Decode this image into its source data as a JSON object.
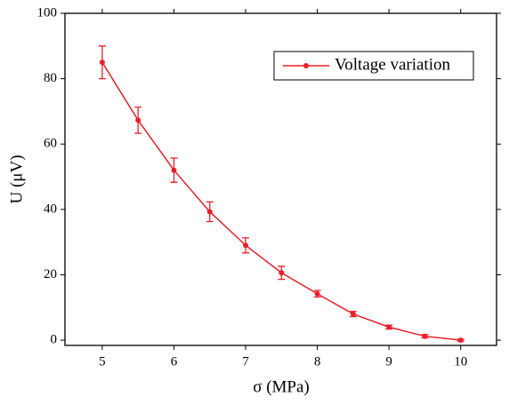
{
  "chart_data": {
    "type": "line",
    "x_label": "σ (MPa)",
    "y_label": "U (μV)",
    "x": [
      5,
      5.5,
      6,
      6.5,
      7,
      7.5,
      8,
      8.5,
      9,
      9.5,
      10
    ],
    "series": [
      {
        "name": "Voltage variation",
        "color": "#e8202a",
        "values": [
          85,
          67.3,
          52,
          39.3,
          29,
          20.6,
          14.2,
          8,
          4,
          1.2,
          0
        ],
        "errors": [
          5,
          4,
          3.7,
          3,
          2.3,
          2,
          1,
          0.8,
          0.6,
          0.5,
          0.3
        ]
      }
    ],
    "xlim": [
      4.48,
      10.5
    ],
    "xticks": [
      5,
      6,
      7,
      8,
      9,
      10
    ],
    "ylim": [
      -1.6,
      100
    ],
    "yticks": [
      0,
      20,
      40,
      60,
      80,
      100
    ],
    "legend": "upper-right"
  }
}
